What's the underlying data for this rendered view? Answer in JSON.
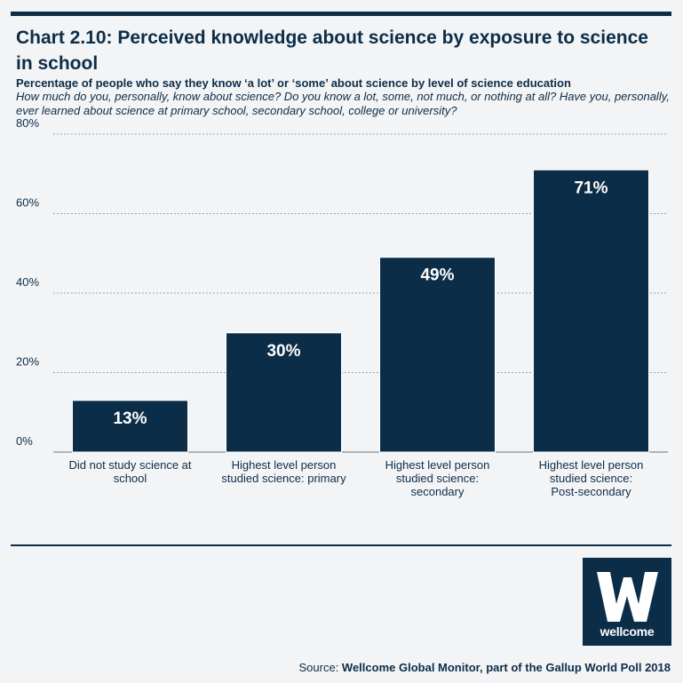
{
  "header": {
    "title": "Chart 2.10: Perceived knowledge about science by exposure to science in school",
    "subtitle": "Percentage of people who say they know ‘a lot’ or ‘some’ about science by level of science education",
    "question": "How much do you, personally, know about science? Do you know a lot, some, not much, or nothing at all? Have you, personally, ever learned about science at primary school, secondary school, college or university?"
  },
  "chart_data": {
    "type": "bar",
    "categories": [
      [
        "Did not study science at",
        "school"
      ],
      [
        "Highest level person",
        "studied science: primary"
      ],
      [
        "Highest level person",
        "studied science:",
        "secondary"
      ],
      [
        "Highest level person",
        "studied science:",
        "Post-secondary"
      ]
    ],
    "values": [
      13,
      30,
      49,
      71
    ],
    "value_labels": [
      "13%",
      "30%",
      "49%",
      "71%"
    ],
    "yticks": [
      "0%",
      "20%",
      "40%",
      "60%",
      "80%"
    ],
    "ylim": [
      0,
      80
    ],
    "grid": true,
    "bar_color": "#0c2d48",
    "grid_color": "#9aa3ad"
  },
  "logo": {
    "text": "wellcome"
  },
  "footer": {
    "source_label": "Source: ",
    "source_text": "Wellcome Global Monitor, part of the Gallup World Poll 2018"
  }
}
